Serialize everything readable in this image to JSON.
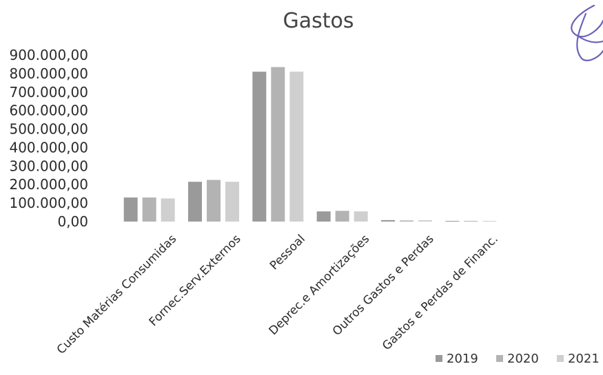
{
  "chart_data": {
    "type": "bar",
    "title": "Gastos",
    "xlabel": "",
    "ylabel": "",
    "categories": [
      "Custo Matérias Consumidas",
      "Fornec.Serv.Externos",
      "Pessoal",
      "Deprec.e Amortizações",
      "Outros Gastos e Perdas",
      "Gastos e Perdas de Financ."
    ],
    "series": [
      {
        "name": "2019",
        "values": [
          130000,
          215000,
          810000,
          55000,
          8000,
          1000
        ],
        "color": "#9a9a9a"
      },
      {
        "name": "2020",
        "values": [
          130000,
          225000,
          835000,
          58000,
          6000,
          1000
        ],
        "color": "#b3b3b3"
      },
      {
        "name": "2021",
        "values": [
          125000,
          215000,
          810000,
          55000,
          7000,
          1000
        ],
        "color": "#cfcfcf"
      }
    ],
    "ylim": [
      0,
      900000
    ],
    "yticks": [
      "0,00",
      "100.000,00",
      "200.000,00",
      "300.000,00",
      "400.000,00",
      "500.000,00",
      "600.000,00",
      "700.000,00",
      "800.000,00",
      "900.000,00"
    ],
    "grid": false,
    "legend": "bottom-right"
  }
}
